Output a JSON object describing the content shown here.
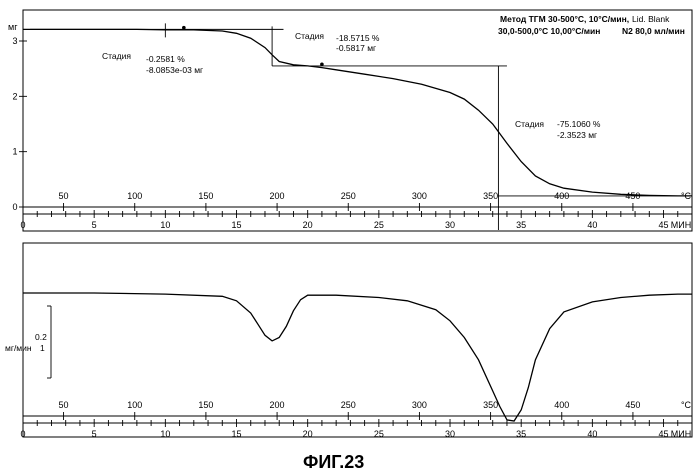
{
  "chart_data": [
    {
      "type": "line",
      "header": {
        "line1": "Метод ТГМ 30-500°C, 10°C/мин,",
        "line2": "30,0-500,0°C 10,00°C/мин",
        "line3": "Lid. Blank",
        "line4": "N2 80,0 мл/мин"
      },
      "ylabel": "мг",
      "ylim": [
        0,
        3.2
      ],
      "yticks": [
        "0",
        "1",
        "2",
        "3"
      ],
      "xlim": [
        0,
        47
      ],
      "time_unit": "МИН",
      "time_ticks": [
        "0",
        "5",
        "10",
        "15",
        "20",
        "25",
        "30",
        "35",
        "40",
        "45"
      ],
      "temp_unit": "°C",
      "temp_ticks": [
        "50",
        "100",
        "150",
        "200",
        "250",
        "300",
        "350",
        "400",
        "450"
      ],
      "series": [
        {
          "x": [
            0,
            2,
            5,
            8,
            10,
            12,
            14,
            15,
            16,
            17,
            17.5,
            18,
            19,
            20,
            21,
            22,
            24,
            26,
            28,
            30,
            31,
            32,
            33,
            34,
            35,
            36,
            37,
            38,
            40,
            42,
            44,
            46,
            47
          ],
          "values": [
            3.21,
            3.21,
            3.21,
            3.21,
            3.2,
            3.2,
            3.18,
            3.14,
            3.05,
            2.88,
            2.75,
            2.63,
            2.57,
            2.55,
            2.52,
            2.48,
            2.4,
            2.32,
            2.22,
            2.07,
            1.95,
            1.75,
            1.5,
            1.15,
            0.82,
            0.56,
            0.42,
            0.34,
            0.27,
            0.23,
            0.21,
            0.2,
            0.2
          ]
        }
      ],
      "steps": [
        {
          "label": "Стадия",
          "percent": "-0.2581 %",
          "mass": "-8.0853e-03 мг"
        },
        {
          "label": "Стадия",
          "percent": "-18.5715 %",
          "mass": "-0.5817 мг"
        },
        {
          "label": "Стадия",
          "percent": "-75.1060 %",
          "mass": "-2.3523 мг"
        }
      ]
    },
    {
      "type": "line",
      "ylabel_line1": "мг/мин",
      "ylabel_line2": "0.2",
      "ylabel_line3": "1",
      "xlim": [
        0,
        47
      ],
      "time_unit": "МИН",
      "time_ticks": [
        "0",
        "5",
        "10",
        "15",
        "20",
        "25",
        "30",
        "35",
        "40",
        "45"
      ],
      "temp_unit": "°C",
      "temp_ticks": [
        "50",
        "100",
        "150",
        "200",
        "250",
        "300",
        "350",
        "400",
        "450"
      ],
      "series": [
        {
          "x": [
            0,
            5,
            10,
            14,
            15,
            16,
            16.5,
            17,
            17.5,
            18,
            18.5,
            19,
            19.5,
            20,
            22,
            25,
            27,
            29,
            30,
            31,
            32,
            33,
            33.5,
            34,
            34.5,
            35,
            35.5,
            36,
            37,
            38,
            40,
            42,
            44,
            46,
            47
          ],
          "values": [
            0.0,
            0.0,
            -0.01,
            -0.03,
            -0.07,
            -0.18,
            -0.28,
            -0.38,
            -0.43,
            -0.4,
            -0.3,
            -0.16,
            -0.06,
            -0.02,
            -0.02,
            -0.04,
            -0.07,
            -0.15,
            -0.25,
            -0.4,
            -0.6,
            -0.88,
            -1.02,
            -1.14,
            -1.15,
            -1.05,
            -0.85,
            -0.6,
            -0.32,
            -0.17,
            -0.08,
            -0.04,
            -0.02,
            -0.01,
            -0.01
          ]
        }
      ]
    }
  ],
  "caption": "ФИГ.23"
}
